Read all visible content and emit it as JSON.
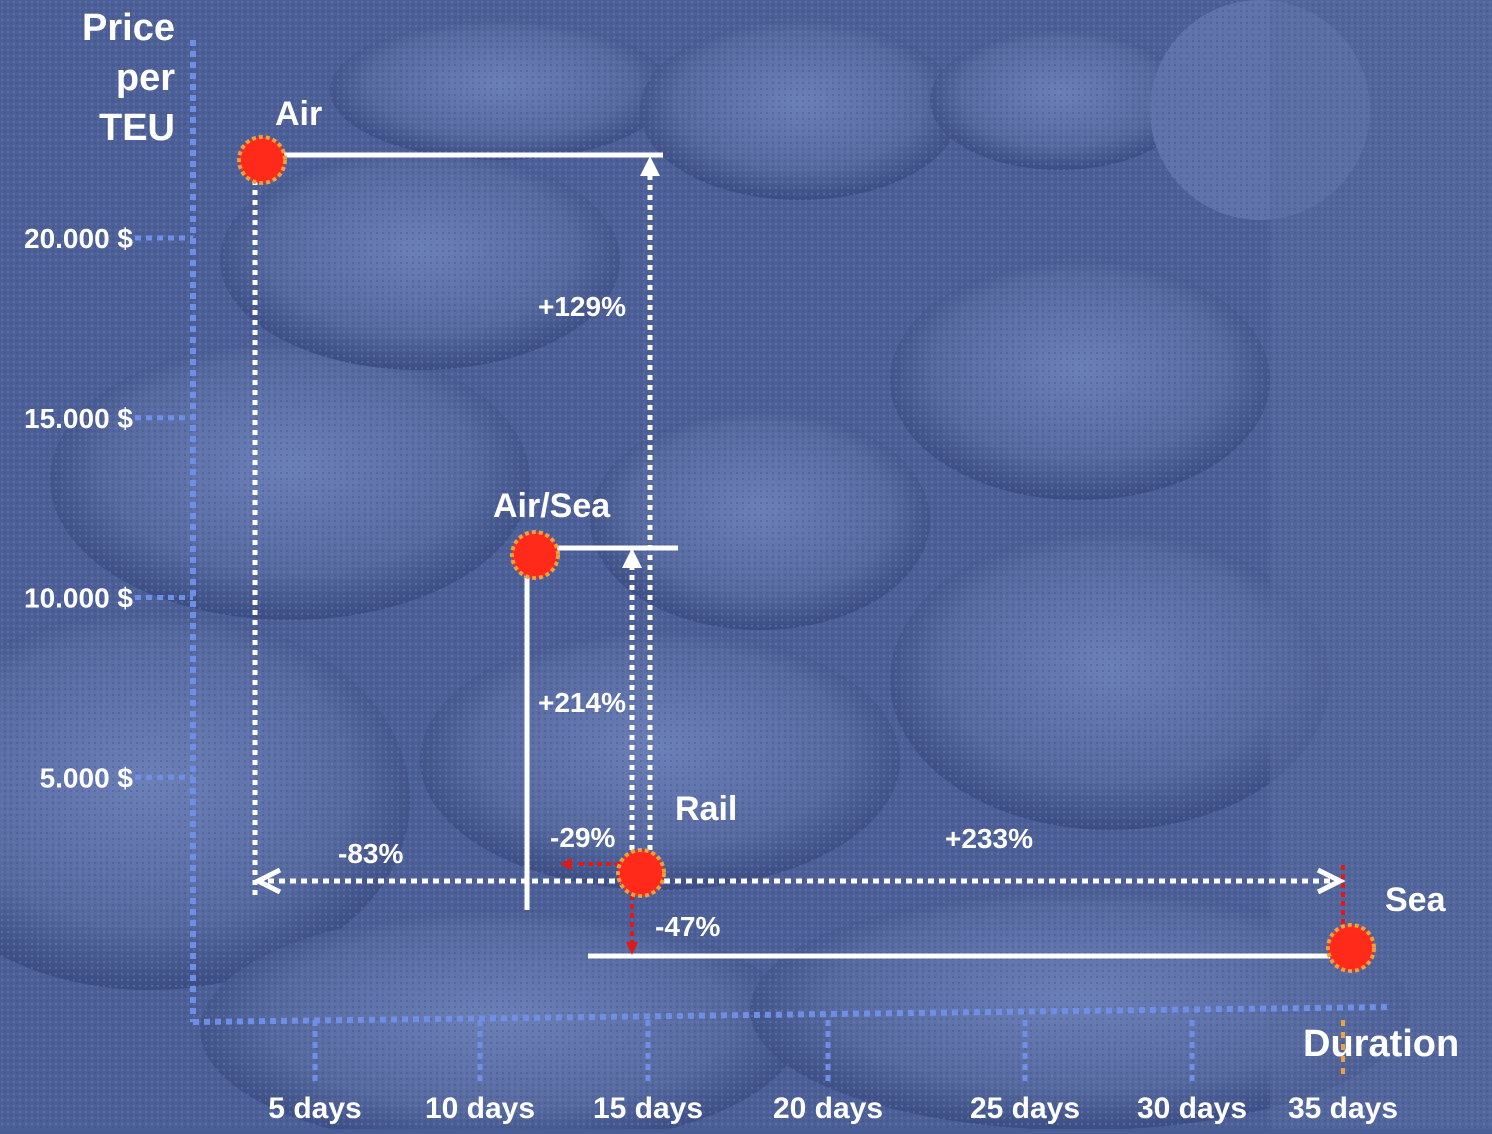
{
  "colors": {
    "background": "#4a5e96",
    "axis": "#6f8fe6",
    "connector": "#ffffff",
    "point_fill": "#ff2a1a",
    "point_ring": "#f0a040",
    "reduction_arrow": "#e01818"
  },
  "chart_data": {
    "type": "scatter",
    "title": "",
    "ylabel": "Price per TEU",
    "ylabel_lines": [
      "Price",
      "per",
      "TEU"
    ],
    "xlabel": "Duration",
    "xlim": [
      0,
      36
    ],
    "ylim": [
      0,
      22500
    ],
    "yticks": [
      {
        "value": 5000,
        "label": "5.000 $"
      },
      {
        "value": 10000,
        "label": "10.000 $"
      },
      {
        "value": 15000,
        "label": "15.000 $"
      },
      {
        "value": 20000,
        "label": "20.000 $"
      }
    ],
    "xticks": [
      {
        "value": 5,
        "label": "5 days"
      },
      {
        "value": 10,
        "label": "10 days"
      },
      {
        "value": 15,
        "label": "15 days"
      },
      {
        "value": 20,
        "label": "20 days"
      },
      {
        "value": 25,
        "label": "25 days"
      },
      {
        "value": 30,
        "label": "30 days"
      },
      {
        "value": 35,
        "label": "35 days"
      }
    ],
    "points": [
      {
        "name": "Air",
        "x": 3,
        "y": 22000
      },
      {
        "name": "Air/Sea",
        "x": 11,
        "y": 11000
      },
      {
        "name": "Rail",
        "x": 15,
        "y": 500
      },
      {
        "name": "Sea",
        "x": 35,
        "y": -1400
      }
    ],
    "annotations": [
      {
        "label": "+129%"
      },
      {
        "label": "+214%"
      },
      {
        "label": "-83%"
      },
      {
        "label": "-29%"
      },
      {
        "label": "+233%"
      },
      {
        "label": "-47%"
      }
    ],
    "grid": false,
    "legend": "none"
  }
}
